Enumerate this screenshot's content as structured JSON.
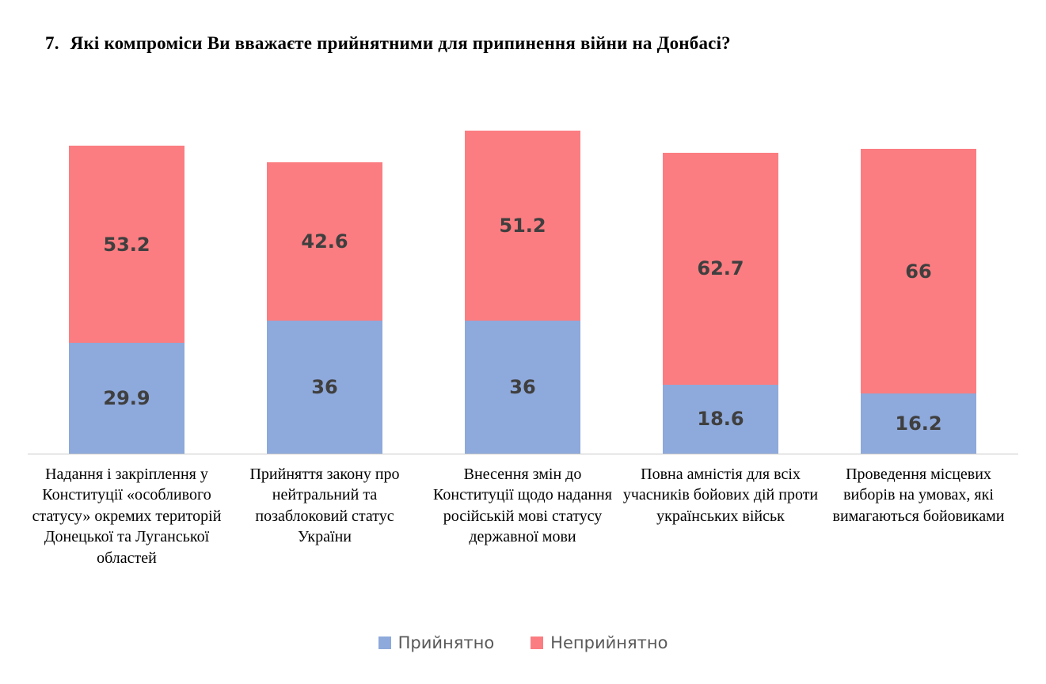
{
  "title": {
    "number": "7.",
    "text": "Які компроміси Ви вважаєте прийнятними для припинення війни на Донбасі?"
  },
  "chart_data": {
    "type": "bar",
    "stacked": true,
    "title": "7. Які компроміси Ви вважаєте прийнятними для припинення війни на Донбасі?",
    "categories": [
      "Надання і закріплення у Конституції «особливого статусу» окремих територій Донецької та Луганської областей",
      "Прийняття закону про нейтральний та позаблоковий статус України",
      "Внесення змін до Конституції щодо надання російській мові статусу державної мови",
      "Повна амністія для всіх учасників бойових дій проти українських військ",
      "Проведення місцевих виборів на умовах, які вимагаються бойовиками"
    ],
    "series": [
      {
        "name": "Прийнятно",
        "color": "#8EA9DB",
        "values": [
          29.9,
          36,
          36,
          18.6,
          16.2
        ]
      },
      {
        "name": "Неприйнятно",
        "color": "#FB7D81",
        "values": [
          53.2,
          42.6,
          51.2,
          62.7,
          66
        ]
      }
    ],
    "xlabel": "",
    "ylabel": "",
    "ylim": [
      0,
      90
    ],
    "grid": false,
    "legend_position": "bottom",
    "value_label_color": "#3f3f3f",
    "axis_line_color": "#c9c9c9"
  }
}
